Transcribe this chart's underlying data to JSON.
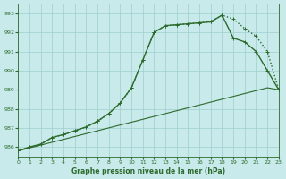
{
  "title": "Graphe pression niveau de la mer (hPa)",
  "bg_color": "#c8eaea",
  "grid_color": "#9ecece",
  "line_color_main": "#2d6a2d",
  "xmin": 0,
  "xmax": 23,
  "ymin": 985.5,
  "ymax": 993.5,
  "yticks": [
    986,
    987,
    988,
    989,
    990,
    991,
    992,
    993
  ],
  "xticks": [
    0,
    1,
    2,
    3,
    4,
    5,
    6,
    7,
    8,
    9,
    10,
    11,
    12,
    13,
    14,
    15,
    16,
    17,
    18,
    19,
    20,
    21,
    22,
    23
  ],
  "line1_dotted": {
    "x": [
      0,
      1,
      2,
      3,
      4,
      5,
      6,
      7,
      8,
      9,
      10,
      11,
      12,
      13,
      14,
      15,
      16,
      17,
      18,
      19,
      20,
      21,
      22,
      23
    ],
    "y": [
      985.8,
      986.0,
      986.15,
      986.5,
      986.65,
      986.85,
      987.05,
      987.35,
      987.75,
      988.3,
      989.1,
      990.55,
      992.0,
      992.35,
      992.4,
      992.45,
      992.5,
      992.55,
      992.9,
      992.7,
      992.2,
      991.8,
      991.0,
      989.0
    ],
    "color": "#2d6a2d",
    "lw": 1.0,
    "linestyle": ":"
  },
  "line2_solid": {
    "x": [
      0,
      1,
      2,
      3,
      4,
      5,
      6,
      7,
      8,
      9,
      10,
      11,
      12,
      13,
      14,
      15,
      16,
      17,
      18,
      19,
      20,
      21,
      22,
      23
    ],
    "y": [
      985.8,
      986.0,
      986.15,
      986.5,
      986.65,
      986.85,
      987.05,
      987.35,
      987.75,
      988.3,
      989.1,
      990.55,
      992.0,
      992.35,
      992.4,
      992.45,
      992.5,
      992.55,
      992.9,
      991.7,
      991.5,
      991.0,
      990.0,
      989.0
    ],
    "color": "#2d6a2d",
    "lw": 1.0,
    "linestyle": "-"
  },
  "line3_straight": {
    "x": [
      0,
      1,
      2,
      3,
      4,
      5,
      6,
      7,
      8,
      9,
      10,
      11,
      12,
      13,
      14,
      15,
      16,
      17,
      18,
      19,
      20,
      21,
      22,
      23
    ],
    "y": [
      985.8,
      985.95,
      986.1,
      986.25,
      986.4,
      986.55,
      986.7,
      986.85,
      987.0,
      987.15,
      987.3,
      987.45,
      987.6,
      987.75,
      987.9,
      988.05,
      988.2,
      988.35,
      988.5,
      988.65,
      988.8,
      988.95,
      989.1,
      989.0
    ],
    "color": "#2d6a2d",
    "lw": 0.8,
    "linestyle": "-"
  }
}
